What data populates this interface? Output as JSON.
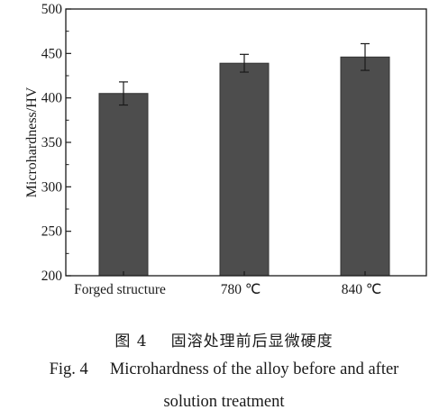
{
  "chart_data": {
    "type": "bar",
    "categories": [
      "Forged structure",
      "780 ℃",
      "840 ℃"
    ],
    "values": [
      405,
      439,
      446
    ],
    "error": [
      13,
      10,
      15
    ],
    "ylabel": "Microhardness/HV",
    "xlabel": "",
    "ylim": [
      200,
      500
    ],
    "yticks": [
      200,
      250,
      300,
      350,
      400,
      450,
      500
    ],
    "grid": false,
    "bar_color": "#4d4d4d"
  },
  "caption": {
    "cn_number": "图 4",
    "cn_text": "固溶处理前后显微硬度",
    "en_number": "Fig. 4",
    "en_line1": "Microhardness of the alloy before and after",
    "en_line2": "solution treatment"
  }
}
